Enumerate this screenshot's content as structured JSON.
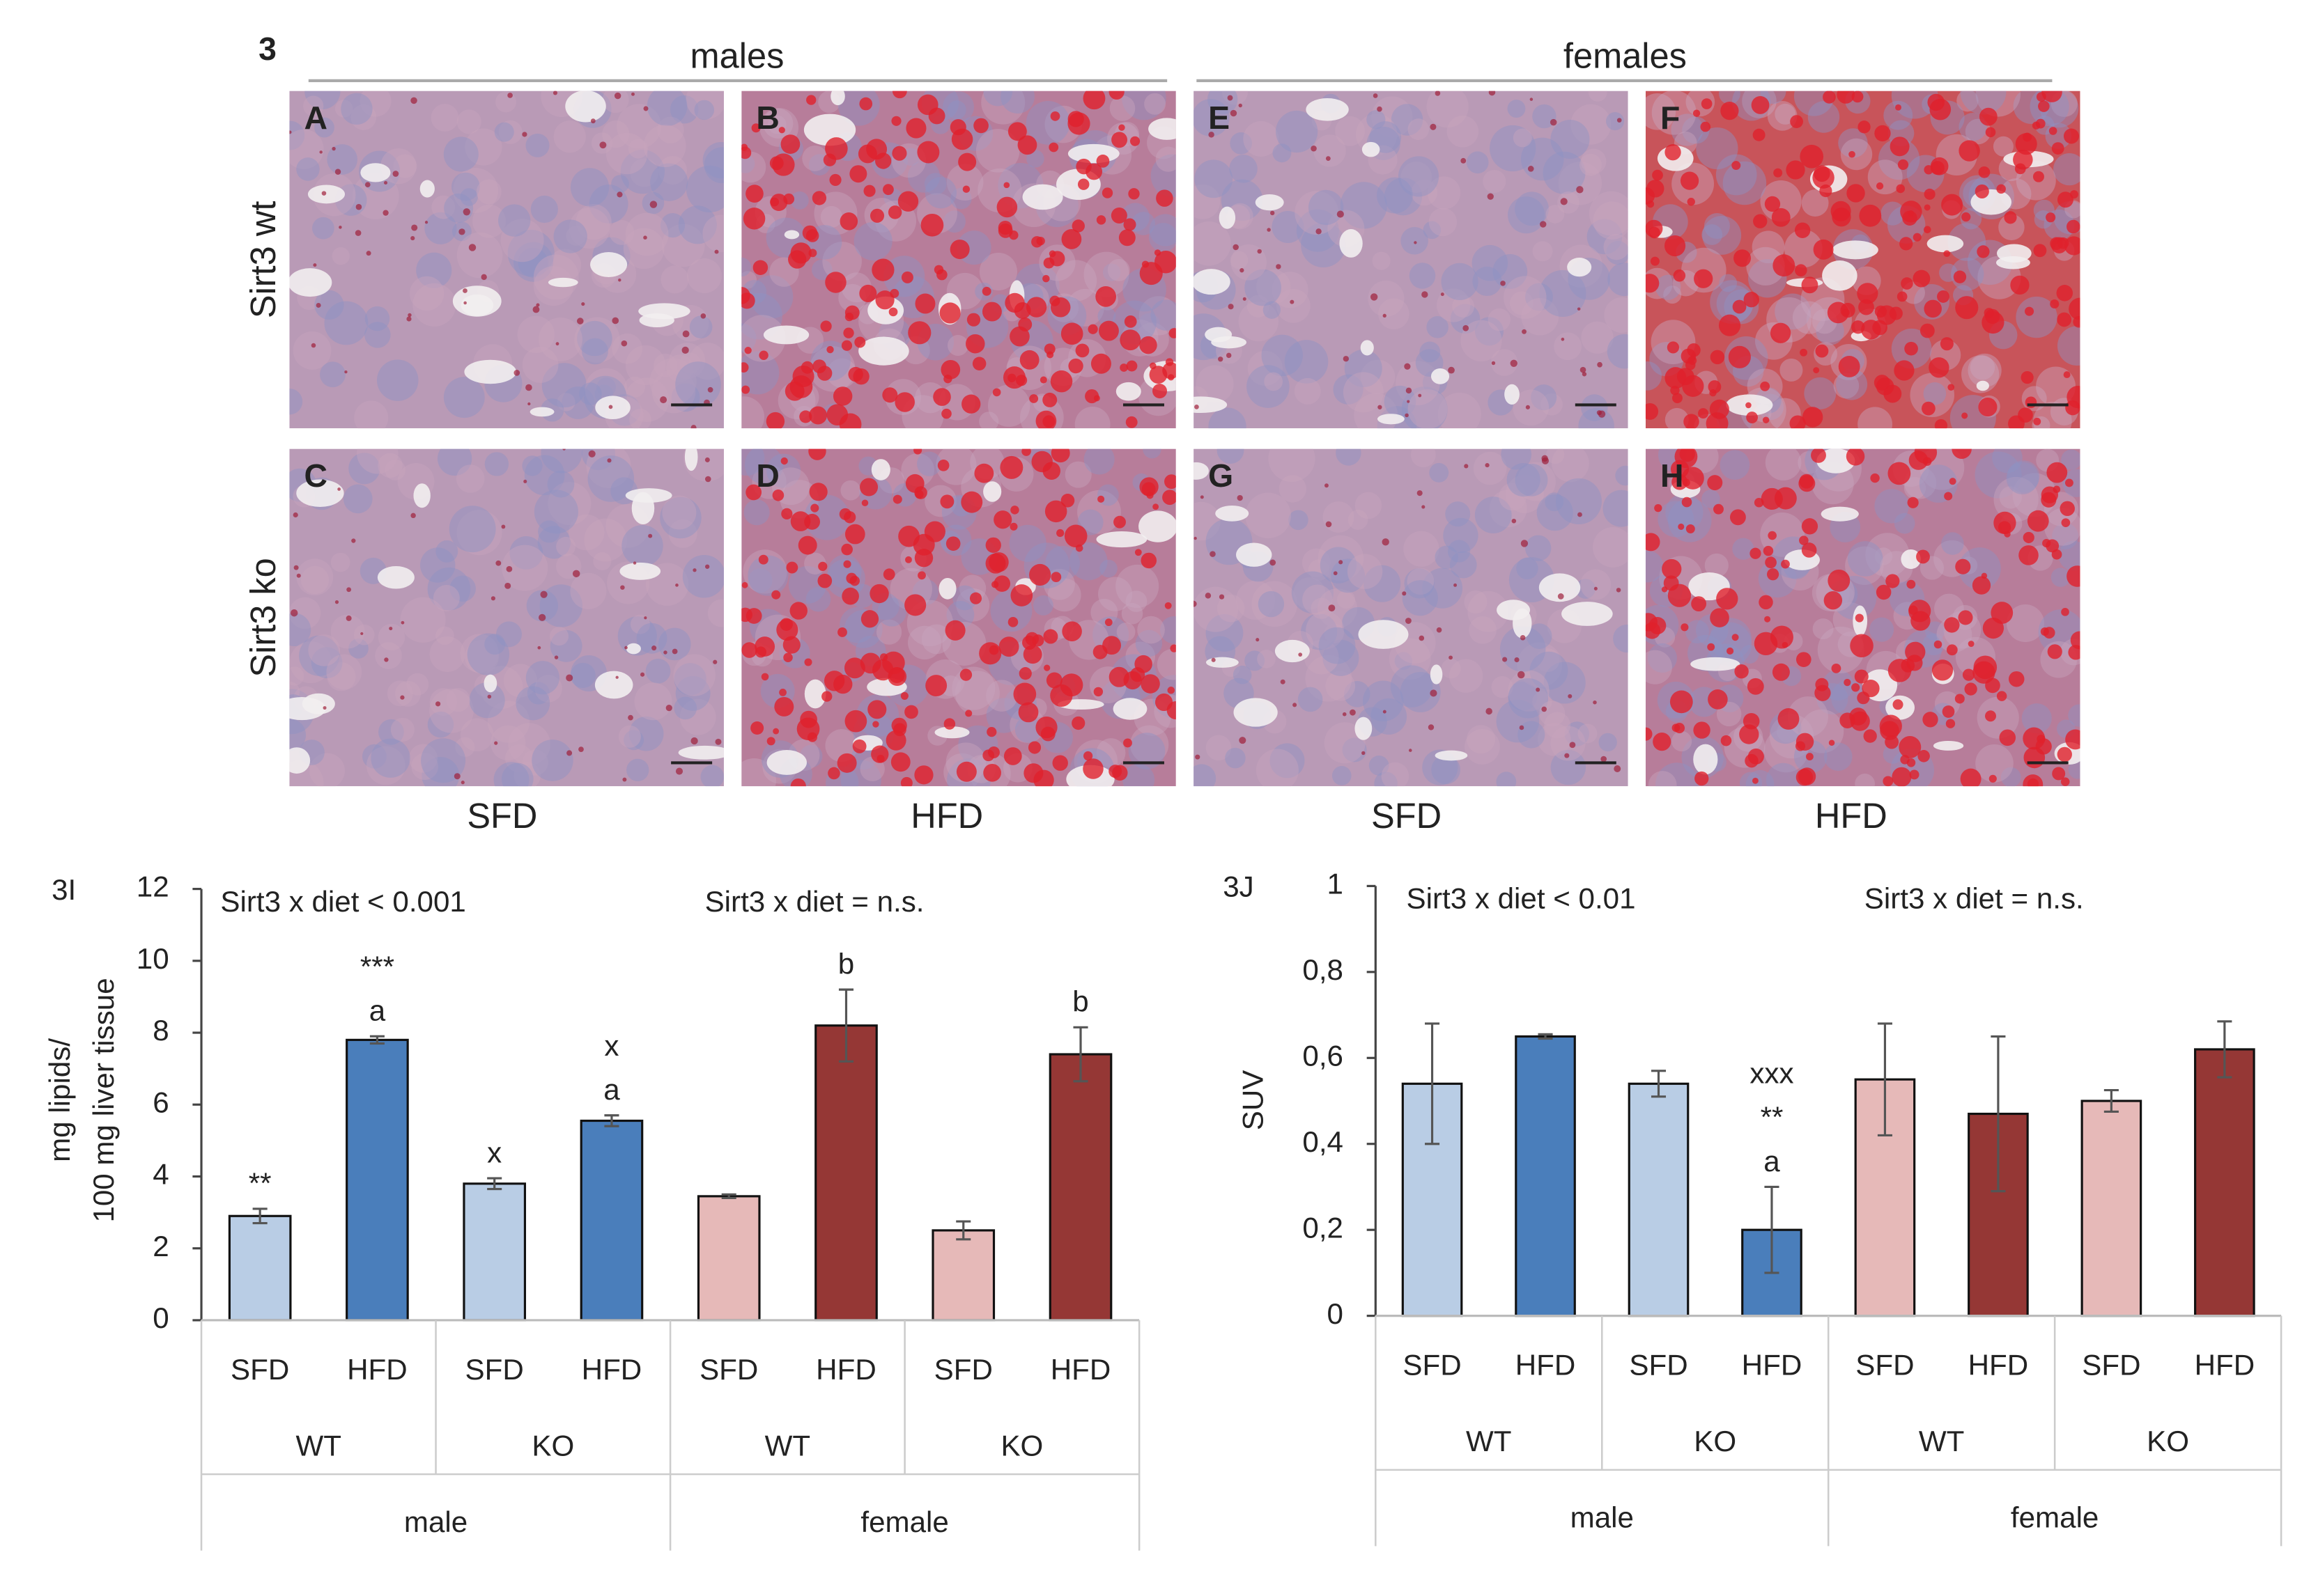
{
  "figure": {
    "figure_number": "3",
    "group_labels": [
      "males",
      "females"
    ],
    "panel_letters": [
      "A",
      "B",
      "E",
      "F",
      "C",
      "D",
      "G",
      "H"
    ],
    "row_labels": [
      "Sirt3 wt",
      "Sirt3 ko"
    ],
    "column_labels": [
      "SFD",
      "HFD",
      "SFD",
      "HFD"
    ]
  },
  "chart_data": [
    {
      "type": "bar",
      "panel_label": "3I",
      "ylabel": [
        "mg lipids/",
        "100 mg liver tissue"
      ],
      "notes": [
        "Sirt3 x diet < 0.001",
        "Sirt3 x diet = n.s."
      ],
      "categories": [
        "SFD",
        "HFD",
        "SFD",
        "HFD",
        "SFD",
        "HFD",
        "SFD",
        "HFD"
      ],
      "genotypes": [
        "WT",
        "KO",
        "WT",
        "KO"
      ],
      "sexes": [
        "male",
        "female"
      ],
      "values": [
        2.9,
        7.8,
        3.8,
        5.55,
        3.45,
        8.2,
        2.5,
        7.4
      ],
      "errors": [
        0.2,
        0.1,
        0.15,
        0.15,
        0.05,
        1.0,
        0.25,
        0.75
      ],
      "colors": [
        "#b9cde5",
        "#4a7ebb",
        "#b9cde5",
        "#4a7ebb",
        "#e6b9b8",
        "#953735",
        "#e6b9b8",
        "#953735"
      ],
      "annotations": [
        [
          "**"
        ],
        [
          "***",
          "a"
        ],
        [
          "x"
        ],
        [
          "x",
          "a"
        ],
        [],
        [
          "b"
        ],
        [],
        [
          "b"
        ]
      ],
      "ylim": [
        0,
        12
      ],
      "yticks": [
        0,
        2,
        4,
        6,
        8,
        10,
        12
      ]
    },
    {
      "type": "bar",
      "panel_label": "3J",
      "ylabel": [
        "SUV"
      ],
      "notes": [
        "Sirt3 x diet < 0.01",
        "Sirt3 x diet = n.s."
      ],
      "categories": [
        "SFD",
        "HFD",
        "SFD",
        "HFD",
        "SFD",
        "HFD",
        "SFD",
        "HFD"
      ],
      "genotypes": [
        "WT",
        "KO",
        "WT",
        "KO"
      ],
      "sexes": [
        "male",
        "female"
      ],
      "values": [
        0.54,
        0.65,
        0.54,
        0.2,
        0.55,
        0.47,
        0.5,
        0.62
      ],
      "errors": [
        0.14,
        0.005,
        0.03,
        0.1,
        0.13,
        0.18,
        0.025,
        0.065
      ],
      "colors": [
        "#b9cde5",
        "#4a7ebb",
        "#b9cde5",
        "#4a7ebb",
        "#e6b9b8",
        "#953735",
        "#e6b9b8",
        "#953735"
      ],
      "annotations": [
        [],
        [],
        [],
        [
          "xxx",
          "**",
          "a"
        ],
        [],
        [],
        [],
        []
      ],
      "ylim": [
        0,
        1
      ],
      "yticks": [
        0,
        {
          "value": 0.2,
          "label": "0,2"
        },
        {
          "value": 0.4,
          "label": "0,4"
        },
        {
          "value": 0.6,
          "label": "0,6"
        },
        {
          "value": 0.8,
          "label": "0,8"
        },
        1
      ]
    }
  ]
}
